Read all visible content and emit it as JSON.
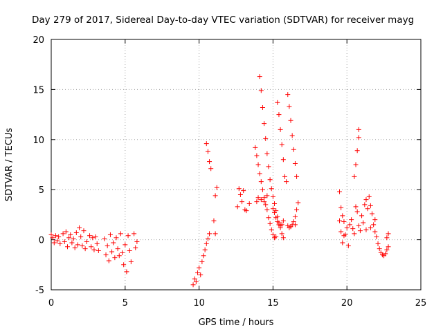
{
  "chart_data": {
    "type": "scatter",
    "title": "Day 279 of 2017, Sidereal Day-to-day VTEC variation (SDTVAR) for receiver mayg",
    "xlabel": "GPS time / hours",
    "ylabel": "SDTVAR / TECUs",
    "xlim": [
      0,
      25
    ],
    "ylim": [
      -5,
      20
    ],
    "xticks": [
      "0",
      "5",
      "10",
      "15",
      "20",
      "25"
    ],
    "yticks": [
      "-5",
      "0",
      "5",
      "10",
      "15",
      "20"
    ],
    "grid": true,
    "marker": "+",
    "colors": {
      "series": "#ff0000",
      "grid": "#a0a0a0",
      "frame": "#000000"
    },
    "series": [
      {
        "name": "SDTVAR",
        "points": [
          [
            0.0,
            0.5
          ],
          [
            0.1,
            0.2
          ],
          [
            0.2,
            -0.3
          ],
          [
            0.3,
            0.4
          ],
          [
            0.4,
            -0.1
          ],
          [
            0.5,
            0.3
          ],
          [
            0.6,
            -0.4
          ],
          [
            0.8,
            0.6
          ],
          [
            0.9,
            -0.2
          ],
          [
            1.0,
            0.8
          ],
          [
            1.1,
            -0.7
          ],
          [
            1.2,
            0.2
          ],
          [
            1.3,
            0.5
          ],
          [
            1.4,
            -0.3
          ],
          [
            1.5,
            0.1
          ],
          [
            1.6,
            -0.8
          ],
          [
            1.7,
            0.7
          ],
          [
            1.8,
            -0.5
          ],
          [
            1.9,
            1.2
          ],
          [
            2.0,
            0.3
          ],
          [
            2.1,
            -0.6
          ],
          [
            2.2,
            0.9
          ],
          [
            2.3,
            -0.9
          ],
          [
            2.4,
            -0.2
          ],
          [
            2.6,
            0.4
          ],
          [
            2.7,
            -0.7
          ],
          [
            2.8,
            0.2
          ],
          [
            2.9,
            -1.0
          ],
          [
            3.0,
            0.3
          ],
          [
            3.1,
            -0.4
          ],
          [
            3.2,
            -1.1
          ],
          [
            3.6,
            0.1
          ],
          [
            3.7,
            -1.5
          ],
          [
            3.8,
            -0.6
          ],
          [
            3.9,
            -2.1
          ],
          [
            4.0,
            0.5
          ],
          [
            4.1,
            -1.2
          ],
          [
            4.2,
            -0.3
          ],
          [
            4.3,
            -1.8
          ],
          [
            4.4,
            0.2
          ],
          [
            4.5,
            -0.9
          ],
          [
            4.6,
            -1.6
          ],
          [
            4.7,
            0.6
          ],
          [
            4.8,
            -1.3
          ],
          [
            4.9,
            -2.5
          ],
          [
            5.0,
            -0.5
          ],
          [
            5.1,
            -3.2
          ],
          [
            5.2,
            0.4
          ],
          [
            5.3,
            -1.1
          ],
          [
            5.4,
            -2.2
          ],
          [
            5.6,
            0.6
          ],
          [
            5.7,
            -0.8
          ],
          [
            5.8,
            -0.2
          ],
          [
            9.6,
            -4.5
          ],
          [
            9.7,
            -3.9
          ],
          [
            9.8,
            -4.2
          ],
          [
            9.9,
            -3.3
          ],
          [
            10.0,
            -2.8
          ],
          [
            10.1,
            -3.5
          ],
          [
            10.2,
            -2.2
          ],
          [
            10.3,
            -1.6
          ],
          [
            10.4,
            -1.0
          ],
          [
            10.5,
            -0.4
          ],
          [
            10.6,
            0.1
          ],
          [
            10.7,
            0.6
          ],
          [
            10.5,
            9.6
          ],
          [
            10.6,
            8.8
          ],
          [
            10.7,
            7.8
          ],
          [
            10.8,
            7.1
          ],
          [
            11.0,
            1.9
          ],
          [
            11.1,
            0.6
          ],
          [
            11.1,
            4.4
          ],
          [
            11.2,
            5.2
          ],
          [
            12.6,
            3.3
          ],
          [
            12.7,
            5.1
          ],
          [
            12.8,
            4.5
          ],
          [
            12.9,
            3.8
          ],
          [
            13.0,
            4.9
          ],
          [
            13.1,
            3.0
          ],
          [
            13.2,
            2.9
          ],
          [
            13.4,
            3.6
          ],
          [
            13.8,
            9.2
          ],
          [
            13.9,
            8.4
          ],
          [
            14.0,
            7.5
          ],
          [
            14.1,
            6.6
          ],
          [
            14.2,
            5.8
          ],
          [
            14.3,
            5.0
          ],
          [
            14.4,
            4.2
          ],
          [
            14.5,
            3.5
          ],
          [
            14.6,
            3.0
          ],
          [
            14.7,
            2.2
          ],
          [
            14.8,
            1.6
          ],
          [
            14.9,
            1.0
          ],
          [
            15.0,
            0.5
          ],
          [
            15.1,
            0.2
          ],
          [
            15.2,
            0.3
          ],
          [
            14.1,
            16.3
          ],
          [
            14.2,
            14.9
          ],
          [
            14.3,
            13.2
          ],
          [
            14.4,
            11.6
          ],
          [
            14.5,
            10.1
          ],
          [
            14.6,
            8.6
          ],
          [
            14.7,
            7.3
          ],
          [
            14.8,
            6.0
          ],
          [
            14.9,
            5.1
          ],
          [
            15.0,
            4.3
          ],
          [
            15.1,
            3.6
          ],
          [
            15.2,
            2.9
          ],
          [
            15.3,
            2.3
          ],
          [
            15.4,
            1.7
          ],
          [
            15.5,
            1.2
          ],
          [
            15.6,
            0.6
          ],
          [
            15.7,
            0.2
          ],
          [
            15.3,
            13.7
          ],
          [
            15.4,
            12.5
          ],
          [
            15.5,
            11.0
          ],
          [
            15.6,
            9.5
          ],
          [
            15.7,
            8.0
          ],
          [
            15.0,
            3.1
          ],
          [
            15.1,
            2.7
          ],
          [
            15.2,
            2.2
          ],
          [
            15.3,
            1.8
          ],
          [
            15.4,
            1.5
          ],
          [
            15.5,
            1.4
          ],
          [
            15.6,
            1.5
          ],
          [
            15.7,
            1.9
          ],
          [
            15.8,
            6.3
          ],
          [
            15.9,
            5.8
          ],
          [
            16.0,
            1.4
          ],
          [
            16.1,
            1.2
          ],
          [
            16.2,
            1.3
          ],
          [
            16.3,
            1.5
          ],
          [
            16.4,
            1.8
          ],
          [
            16.0,
            14.5
          ],
          [
            16.1,
            13.3
          ],
          [
            16.2,
            11.9
          ],
          [
            16.3,
            10.4
          ],
          [
            16.4,
            9.0
          ],
          [
            16.5,
            7.6
          ],
          [
            16.6,
            6.3
          ],
          [
            16.5,
            2.3
          ],
          [
            16.6,
            3.0
          ],
          [
            16.7,
            3.7
          ],
          [
            16.5,
            1.5
          ],
          [
            14.0,
            4.2
          ],
          [
            14.2,
            4.0
          ],
          [
            14.4,
            3.8
          ],
          [
            13.9,
            3.8
          ],
          [
            14.6,
            4.4
          ],
          [
            19.5,
            4.8
          ],
          [
            19.6,
            3.2
          ],
          [
            19.7,
            2.4
          ],
          [
            19.8,
            1.8
          ],
          [
            19.5,
            1.9
          ],
          [
            19.6,
            0.8
          ],
          [
            19.7,
            -0.3
          ],
          [
            19.8,
            0.4
          ],
          [
            19.9,
            0.5
          ],
          [
            20.0,
            1.2
          ],
          [
            20.1,
            -0.6
          ],
          [
            20.2,
            1.5
          ],
          [
            20.3,
            2.0
          ],
          [
            20.4,
            1.1
          ],
          [
            20.5,
            0.6
          ],
          [
            20.6,
            3.3
          ],
          [
            20.7,
            2.8
          ],
          [
            20.8,
            1.4
          ],
          [
            20.9,
            0.9
          ],
          [
            21.0,
            2.4
          ],
          [
            21.1,
            1.7
          ],
          [
            21.2,
            3.5
          ],
          [
            21.3,
            4.0
          ],
          [
            21.4,
            3.1
          ],
          [
            21.5,
            4.3
          ],
          [
            21.6,
            3.4
          ],
          [
            21.7,
            2.6
          ],
          [
            21.8,
            1.5
          ],
          [
            21.9,
            0.8
          ],
          [
            22.0,
            0.3
          ],
          [
            22.1,
            -0.4
          ],
          [
            22.2,
            -0.9
          ],
          [
            22.3,
            -1.3
          ],
          [
            22.4,
            -1.5
          ],
          [
            22.5,
            -1.6
          ],
          [
            22.6,
            -1.4
          ],
          [
            22.7,
            -1.0
          ],
          [
            22.8,
            -0.7
          ],
          [
            22.7,
            0.2
          ],
          [
            22.8,
            0.6
          ],
          [
            20.5,
            6.3
          ],
          [
            20.6,
            7.5
          ],
          [
            20.7,
            8.9
          ],
          [
            20.8,
            10.2
          ],
          [
            20.8,
            11.0
          ],
          [
            21.3,
            1.0
          ],
          [
            21.6,
            1.2
          ],
          [
            21.9,
            2.0
          ]
        ]
      }
    ]
  }
}
